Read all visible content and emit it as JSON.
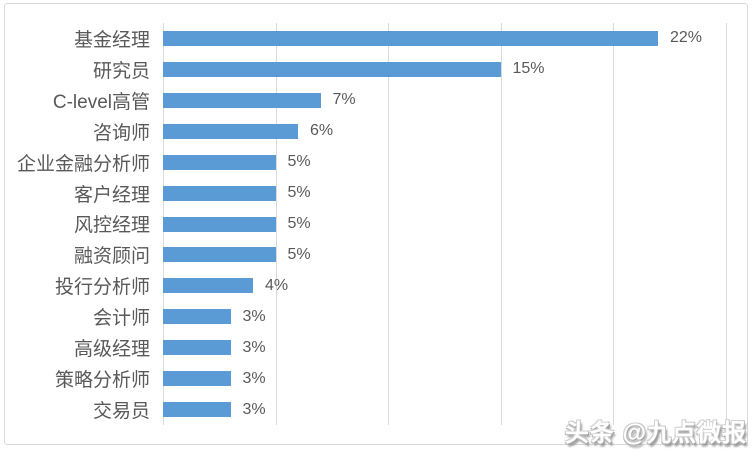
{
  "chart_data": {
    "type": "bar",
    "orientation": "horizontal",
    "title": "",
    "xlabel": "",
    "ylabel": "",
    "categories": [
      "基金经理",
      "研究员",
      "C-level高管",
      "咨询师",
      "企业金融分析师",
      "客户经理",
      "风控经理",
      "融资顾问",
      "投行分析师",
      "会计师",
      "高级经理",
      "策略分析师",
      "交易员"
    ],
    "values": [
      22,
      15,
      7,
      6,
      5,
      5,
      5,
      5,
      4,
      3,
      3,
      3,
      3
    ],
    "value_labels": [
      "22%",
      "15%",
      "7%",
      "6%",
      "5%",
      "5%",
      "5%",
      "5%",
      "4%",
      "3%",
      "3%",
      "3%",
      "3%"
    ],
    "unit": "%",
    "xlim": [
      0,
      25
    ],
    "grid_step": 5,
    "grid": true,
    "legend": false,
    "colors": {
      "bar": "#5B9BD5",
      "gridline": "#D9D9D9",
      "text": "#595959",
      "chart_border": "#D9D9D9",
      "background": "#FFFFFF"
    }
  },
  "watermark": {
    "text": "头条 @九点微报"
  }
}
